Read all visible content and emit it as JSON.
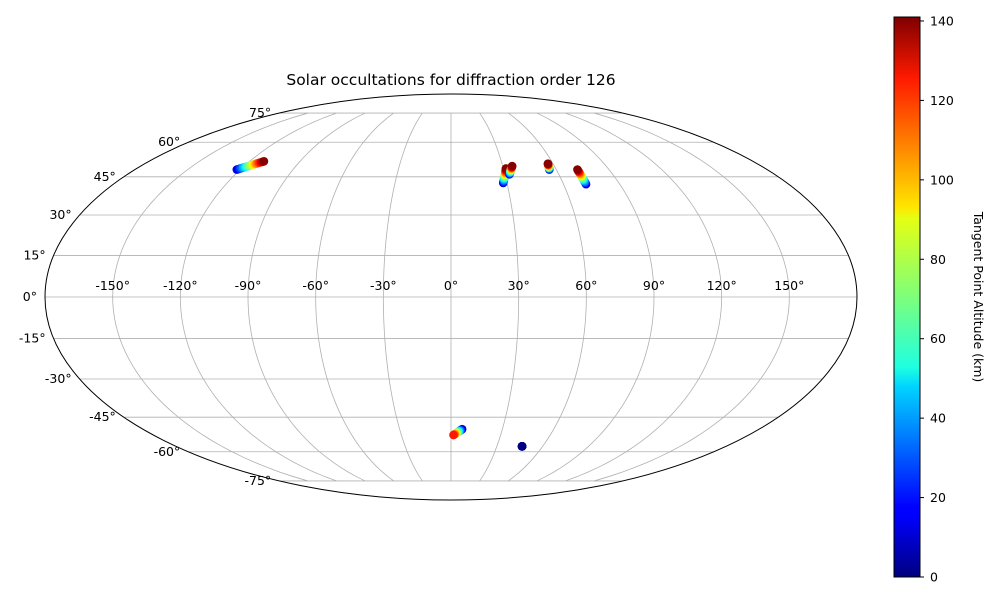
{
  "chart_data": {
    "type": "scatter",
    "projection": "mollweide",
    "title": "Solar occultations for diffraction order 126",
    "grid": true,
    "lon_ticks": [
      -150,
      -120,
      -90,
      -60,
      -30,
      0,
      30,
      60,
      90,
      120,
      150
    ],
    "lon_tick_labels": [
      "-150°",
      "-120°",
      "-90°",
      "-60°",
      "-30°",
      "0°",
      "30°",
      "60°",
      "90°",
      "120°",
      "150°"
    ],
    "lat_ticks": [
      -75,
      -60,
      -45,
      -30,
      -15,
      0,
      15,
      30,
      45,
      60,
      75
    ],
    "lat_tick_labels": [
      "-75°",
      "-60°",
      "-45°",
      "-30°",
      "-15°",
      "0°",
      "15°",
      "30°",
      "45°",
      "60°",
      "75°"
    ],
    "colorbar": {
      "label": "Tangent Point Altitude (km)",
      "colormap": "jet",
      "range": [
        0,
        141
      ],
      "ticks": [
        0,
        20,
        40,
        60,
        80,
        100,
        120,
        140
      ],
      "tick_labels": [
        "0",
        "20",
        "40",
        "60",
        "80",
        "100",
        "120",
        "140"
      ]
    },
    "series": [
      {
        "lon_start": -122,
        "lat_start": 48.0,
        "lon_end": -111.5,
        "lat_end": 51.5,
        "alt_min": 10,
        "alt_max": 140
      },
      {
        "lon_start": 28.0,
        "lat_start": 42.5,
        "lon_end": 31.5,
        "lat_end": 48.5,
        "alt_min": 10,
        "alt_max": 140
      },
      {
        "lon_start": 32.5,
        "lat_start": 46.0,
        "lon_end": 35.5,
        "lat_end": 49.5,
        "alt_min": 10,
        "alt_max": 140
      },
      {
        "lon_start": 56.0,
        "lat_start": 48.0,
        "lon_end": 57.0,
        "lat_end": 50.5,
        "alt_min": 10,
        "alt_max": 140
      },
      {
        "lon_start": 72.0,
        "lat_start": 42.0,
        "lon_end": 72.0,
        "lat_end": 48.0,
        "alt_min": 10,
        "alt_max": 140
      },
      {
        "lon_start": 6.5,
        "lat_start": -50.0,
        "lon_end": 1.5,
        "lat_end": -52.5,
        "alt_min": 5,
        "alt_max": 120
      },
      {
        "lon_start": 46.5,
        "lat_start": -57.5,
        "lon_end": 46.5,
        "lat_end": -57.5,
        "alt_min": 0,
        "alt_max": 0
      }
    ]
  }
}
